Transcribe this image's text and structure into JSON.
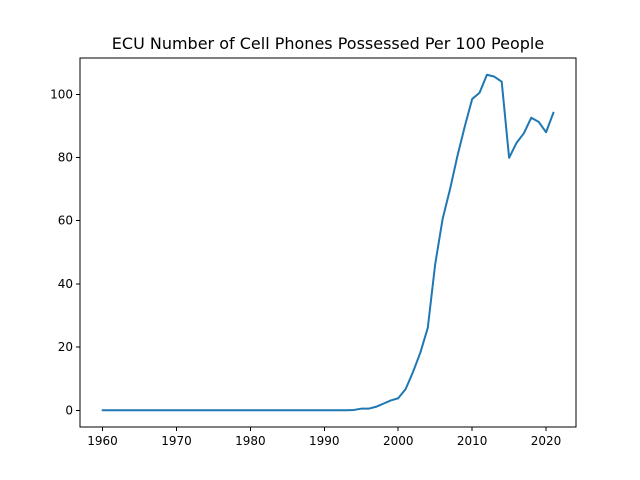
{
  "chart_data": {
    "type": "line",
    "title": "ECU Number of Cell Phones Possessed Per 100 People",
    "xlabel": "",
    "ylabel": "",
    "xlim": [
      1956.95,
      2024.05
    ],
    "ylim": [
      -5.3,
      111.5
    ],
    "xticks": [
      1960,
      1970,
      1980,
      1990,
      2000,
      2010,
      2020
    ],
    "yticks": [
      0,
      20,
      40,
      60,
      80,
      100
    ],
    "grid": false,
    "legend": "none",
    "series": [
      {
        "color": "#1f77b4",
        "points": [
          [
            1960,
            0
          ],
          [
            1961,
            0
          ],
          [
            1962,
            0
          ],
          [
            1963,
            0
          ],
          [
            1964,
            0
          ],
          [
            1965,
            0
          ],
          [
            1966,
            0
          ],
          [
            1967,
            0
          ],
          [
            1968,
            0
          ],
          [
            1969,
            0
          ],
          [
            1970,
            0
          ],
          [
            1971,
            0
          ],
          [
            1972,
            0
          ],
          [
            1973,
            0
          ],
          [
            1974,
            0
          ],
          [
            1975,
            0
          ],
          [
            1976,
            0
          ],
          [
            1977,
            0
          ],
          [
            1978,
            0
          ],
          [
            1979,
            0
          ],
          [
            1980,
            0
          ],
          [
            1981,
            0
          ],
          [
            1982,
            0
          ],
          [
            1983,
            0
          ],
          [
            1984,
            0
          ],
          [
            1985,
            0
          ],
          [
            1986,
            0
          ],
          [
            1987,
            0
          ],
          [
            1988,
            0
          ],
          [
            1989,
            0
          ],
          [
            1990,
            0
          ],
          [
            1991,
            0
          ],
          [
            1992,
            0
          ],
          [
            1993,
            0
          ],
          [
            1994,
            0.1
          ],
          [
            1995,
            0.5
          ],
          [
            1996,
            0.5
          ],
          [
            1997,
            1.1
          ],
          [
            1998,
            2.1
          ],
          [
            1999,
            3.1
          ],
          [
            2000,
            3.8
          ],
          [
            2001,
            6.7
          ],
          [
            2002,
            12.1
          ],
          [
            2003,
            18.3
          ],
          [
            2004,
            26.1
          ],
          [
            2005,
            46.2
          ],
          [
            2006,
            60.5
          ],
          [
            2007,
            69.9
          ],
          [
            2008,
            80.4
          ],
          [
            2009,
            89.8
          ],
          [
            2010,
            98.5
          ],
          [
            2011,
            100.5
          ],
          [
            2012,
            106.2
          ],
          [
            2013,
            105.6
          ],
          [
            2014,
            104.0
          ],
          [
            2015,
            79.9
          ],
          [
            2016,
            84.6
          ],
          [
            2017,
            87.7
          ],
          [
            2018,
            92.6
          ],
          [
            2019,
            91.3
          ],
          [
            2020,
            88.0
          ],
          [
            2021,
            94.2
          ]
        ]
      }
    ]
  }
}
